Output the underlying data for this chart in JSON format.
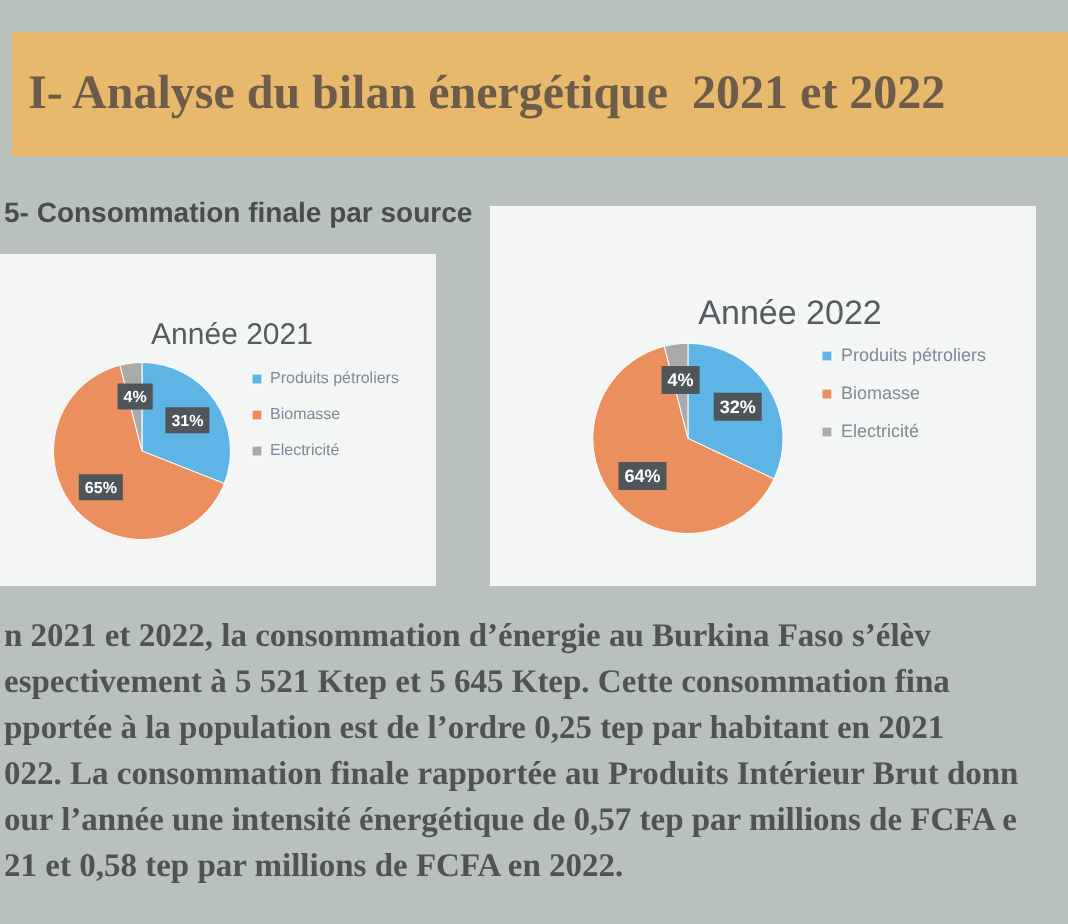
{
  "chart_data": [
    {
      "type": "pie",
      "title": "Année 2021",
      "categories": [
        "Produits pétroliers",
        "Biomasse",
        "Electricité"
      ],
      "values": [
        31,
        65,
        4
      ],
      "colors": [
        "#5fb4e6",
        "#ec8f5f",
        "#a9abab"
      ],
      "value_labels": [
        "31%",
        "65%",
        "4%"
      ],
      "legend": "right",
      "annotations": [
        "I- Analyse du bilan énergétique  2021 et 2022",
        "5- Consommation finale par source",
        "n 2021 et 2022, la consommation d’énergie au Burkina Faso s’élèv",
        "espectivement à 5 521 Ktep et 5 645 Ktep. Cette consommation fina",
        "pportée à la population est de l’ordre 0,25 tep par habitant en 2021",
        "022. La consommation finale rapportée au Produits Intérieur Brut donn",
        "our l’année une intensité énergétique de 0,57 tep par millions de FCFA e",
        "21 et 0,58 tep par millions de FCFA en 2022."
      ]
    },
    {
      "type": "pie",
      "title": "Année 2022",
      "categories": [
        "Produits pétroliers",
        "Biomasse",
        "Electricité"
      ],
      "values": [
        32,
        64,
        4
      ],
      "colors": [
        "#5fb4e6",
        "#ec8f5f",
        "#a9abab"
      ],
      "value_labels": [
        "32%",
        "64%",
        "4%"
      ],
      "legend": "right"
    }
  ]
}
